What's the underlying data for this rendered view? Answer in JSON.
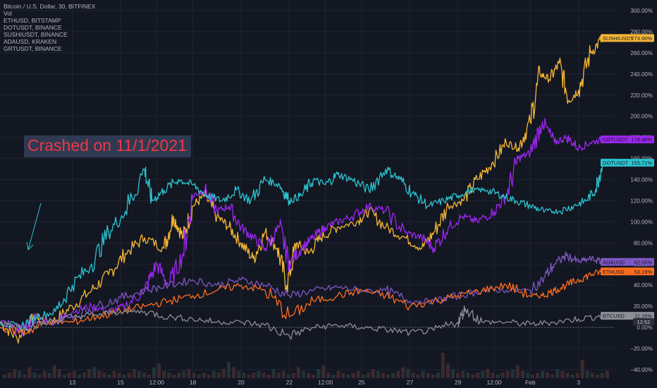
{
  "legend": [
    "Bitcoin / U.S. Dollar, 30, BITFINEX",
    "Vol",
    "ETHUSD, BITSTAMP",
    "DOTUSDT, BINANCE",
    "SUSHIUSDT, BINANCE",
    "ADAUSD, KRAKEN",
    "GRTUSDT, BINANCE"
  ],
  "annotation": "Crashed on 11/1/2021",
  "chart_data": {
    "type": "line",
    "background": "#131722",
    "grid": true,
    "ylim": [
      -40,
      300
    ],
    "y_ticks": [
      "300.00%",
      "280.00%",
      "260.00%",
      "240.00%",
      "220.00%",
      "200.00%",
      "180.00%",
      "160.00%",
      "140.00%",
      "120.00%",
      "100.00%",
      "80.00%",
      "60.00%",
      "40.00%",
      "20.00%",
      "0.00%",
      "−20.00%",
      "−40.00%"
    ],
    "y_tick_values": [
      300,
      280,
      260,
      240,
      220,
      200,
      180,
      160,
      140,
      120,
      100,
      80,
      60,
      40,
      20,
      0,
      -20,
      -40
    ],
    "x_ticks": [
      "13",
      "15",
      "12:00",
      "18",
      "20",
      "22",
      "12:00",
      "25",
      "27",
      "29",
      "12:00",
      "Feb",
      "3"
    ],
    "x_tick_positions": [
      3.0,
      5.0,
      6.5,
      8.0,
      10.0,
      12.0,
      13.5,
      15.0,
      17.0,
      19.0,
      20.5,
      22.0,
      24.0
    ],
    "xlim": [
      0,
      25.5
    ],
    "baseline_value": 0,
    "series": [
      {
        "name": "SUSHIUSDT",
        "color": "#f7b733",
        "label": "SUSHIUSDT",
        "value_label": "273.90%",
        "x": [
          0,
          0.7,
          1.5,
          2.2,
          3.0,
          3.8,
          4.5,
          5.2,
          6.0,
          6.8,
          7.2,
          7.6,
          8.0,
          8.5,
          9.0,
          9.5,
          10.0,
          10.5,
          11.0,
          11.5,
          11.9,
          12.3,
          12.8,
          13.3,
          14.0,
          14.8,
          15.3,
          16.0,
          16.8,
          17.5,
          18.0,
          18.6,
          19.2,
          19.8,
          20.4,
          21.0,
          21.5,
          22.0,
          22.4,
          22.8,
          23.2,
          23.6,
          24.0,
          24.5,
          25.0
        ],
        "values": [
          5,
          -10,
          10,
          5,
          20,
          35,
          50,
          70,
          85,
          75,
          105,
          85,
          115,
          125,
          105,
          95,
          80,
          65,
          90,
          75,
          40,
          80,
          70,
          85,
          95,
          100,
          110,
          95,
          85,
          75,
          90,
          115,
          120,
          140,
          155,
          175,
          170,
          195,
          240,
          235,
          250,
          215,
          225,
          260,
          274
        ]
      },
      {
        "name": "GRTUSDT",
        "color": "#9c27f0",
        "label": "GRTUSDT",
        "value_label": "178.46%",
        "x": [
          0,
          0.8,
          1.5,
          2.3,
          3.0,
          3.8,
          4.5,
          5.2,
          6.0,
          6.5,
          7.0,
          7.6,
          8.0,
          8.5,
          9.0,
          9.5,
          10.0,
          10.5,
          11.0,
          11.6,
          12.0,
          12.5,
          13.0,
          13.5,
          14.0,
          14.6,
          15.3,
          16.0,
          16.8,
          17.5,
          18.0,
          18.6,
          19.2,
          19.8,
          20.5,
          21.0,
          21.5,
          22.0,
          22.5,
          23.0,
          23.5,
          24.0,
          24.5,
          25.0
        ],
        "values": [
          5,
          -5,
          10,
          5,
          15,
          20,
          15,
          20,
          35,
          60,
          40,
          70,
          125,
          130,
          110,
          115,
          95,
          85,
          75,
          95,
          60,
          75,
          85,
          95,
          100,
          105,
          115,
          110,
          90,
          85,
          75,
          95,
          105,
          100,
          110,
          125,
          160,
          165,
          195,
          175,
          180,
          170,
          175,
          178
        ]
      },
      {
        "name": "DOTUSDT",
        "color": "#2bc4cf",
        "label": "DOTUSDT",
        "value_label": "155.71%",
        "x": [
          0,
          0.8,
          1.5,
          2.3,
          3.0,
          3.8,
          4.5,
          5.2,
          6.0,
          6.3,
          6.8,
          7.4,
          8.0,
          8.6,
          9.2,
          9.8,
          10.4,
          11.0,
          11.6,
          12.0,
          12.5,
          13.0,
          13.5,
          14.0,
          14.6,
          15.3,
          16.0,
          16.6,
          17.2,
          17.8,
          18.4,
          19.0,
          19.6,
          20.2,
          20.8,
          21.4,
          22.0,
          22.6,
          23.2,
          23.8,
          24.3,
          24.7,
          25.0
        ],
        "values": [
          5,
          0,
          10,
          15,
          40,
          60,
          90,
          110,
          150,
          120,
          130,
          140,
          135,
          125,
          120,
          130,
          120,
          140,
          135,
          120,
          125,
          140,
          135,
          145,
          140,
          130,
          150,
          140,
          125,
          115,
          120,
          125,
          130,
          130,
          125,
          120,
          115,
          110,
          110,
          115,
          120,
          130,
          156
        ]
      },
      {
        "name": "ADAUSD",
        "color": "#7e57c2",
        "label": "ADAUSD",
        "value_label": "62.55%",
        "x": [
          0,
          1.0,
          2.0,
          3.0,
          4.0,
          5.0,
          6.0,
          7.0,
          8.0,
          9.0,
          10.0,
          11.0,
          12.0,
          13.0,
          14.0,
          15.0,
          16.0,
          17.0,
          18.0,
          19.0,
          20.0,
          21.0,
          22.0,
          22.5,
          23.0,
          23.5,
          24.0,
          24.5,
          25.0
        ],
        "values": [
          5,
          0,
          5,
          10,
          20,
          28,
          35,
          40,
          45,
          40,
          45,
          40,
          30,
          35,
          38,
          35,
          35,
          25,
          25,
          30,
          35,
          35,
          35,
          45,
          60,
          68,
          62,
          65,
          62
        ]
      },
      {
        "name": "ETHUSD",
        "color": "#ff6d1f",
        "label": "ETHUSD",
        "value_label": "53.19%",
        "x": [
          0,
          1.0,
          2.0,
          3.0,
          4.0,
          5.0,
          6.0,
          7.0,
          8.0,
          9.0,
          10.0,
          11.0,
          12.0,
          13.0,
          14.0,
          15.0,
          16.0,
          17.0,
          18.0,
          19.0,
          20.0,
          21.0,
          22.0,
          22.5,
          23.0,
          23.5,
          24.0,
          24.5,
          25.0
        ],
        "values": [
          0,
          -5,
          5,
          5,
          10,
          15,
          20,
          25,
          30,
          35,
          40,
          35,
          10,
          25,
          30,
          35,
          30,
          20,
          25,
          30,
          35,
          40,
          30,
          30,
          35,
          40,
          45,
          50,
          53
        ]
      },
      {
        "name": "BTCUSD",
        "color": "#8c8f96",
        "label": "BTCUSD",
        "value_label": "11.16%",
        "x": [
          0,
          1.0,
          2.0,
          3.0,
          4.0,
          5.0,
          6.0,
          7.0,
          8.0,
          9.0,
          10.0,
          11.0,
          12.0,
          13.0,
          14.0,
          15.0,
          16.0,
          17.0,
          18.0,
          19.0,
          19.3,
          20.0,
          21.0,
          22.0,
          23.0,
          24.0,
          25.0
        ],
        "values": [
          5,
          0,
          5,
          10,
          12,
          15,
          15,
          10,
          8,
          5,
          5,
          2,
          -8,
          0,
          2,
          0,
          -2,
          -5,
          -3,
          5,
          18,
          5,
          5,
          3,
          5,
          8,
          11
        ]
      }
    ],
    "baseline_label": "12:52",
    "volume": [
      2,
      3,
      5,
      4,
      2,
      6,
      3,
      2,
      4,
      3,
      7,
      5,
      2,
      3,
      4,
      2,
      3,
      5,
      6,
      4,
      3,
      2,
      4,
      3,
      2,
      3,
      5,
      4,
      3,
      2,
      6,
      8,
      4,
      3,
      2,
      3,
      4,
      5,
      3,
      2,
      3,
      2,
      4,
      3,
      5,
      9,
      6,
      4,
      3,
      2,
      3,
      4,
      3,
      2,
      5,
      3,
      4,
      2,
      3,
      6,
      4,
      3,
      2,
      5,
      7,
      3,
      2,
      4,
      3,
      2,
      3,
      4,
      2,
      3,
      5,
      4,
      3,
      2,
      3,
      4,
      6,
      5,
      3,
      2,
      4,
      3,
      2,
      3,
      14,
      8,
      5,
      3,
      4,
      3,
      2,
      3,
      4,
      5,
      3,
      2,
      3,
      4,
      5,
      7,
      4,
      3,
      2,
      3,
      4,
      3,
      2,
      5,
      4,
      3,
      2,
      3,
      10,
      4,
      3,
      2,
      3,
      4
    ]
  }
}
